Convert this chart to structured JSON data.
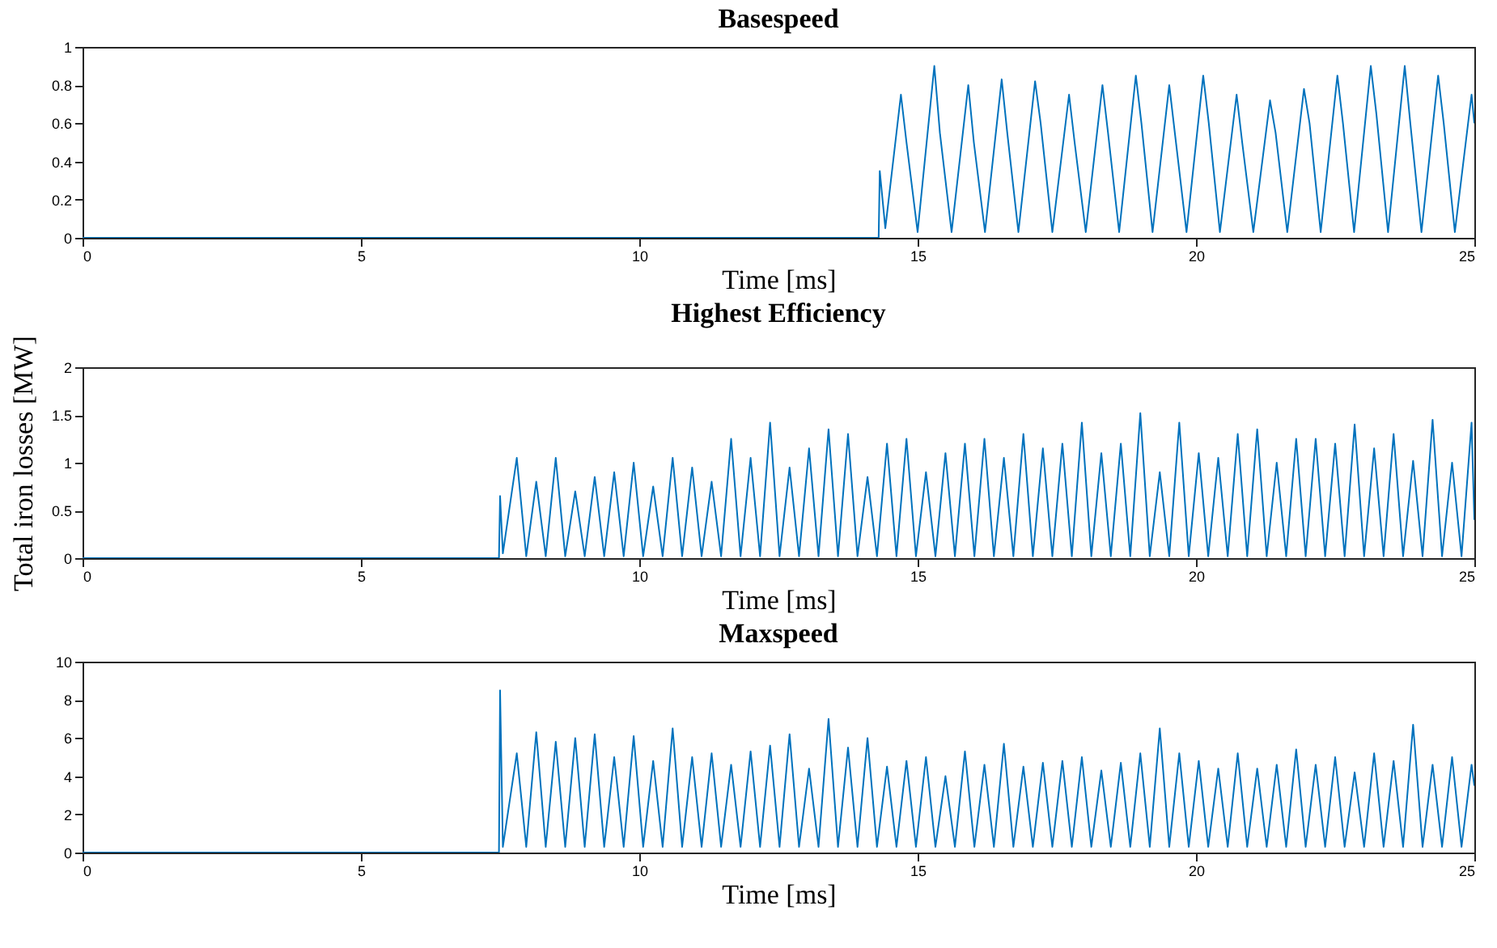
{
  "chart_data": [
    {
      "type": "line",
      "title": "Basespeed",
      "xlabel": "Time [ms]",
      "color": "#0072bd",
      "xlim": [
        0,
        25
      ],
      "xticks": [
        0,
        5,
        10,
        15,
        20,
        25
      ],
      "ylim": [
        0,
        1
      ],
      "yticks": [
        0,
        0.2,
        0.4,
        0.6,
        0.8,
        1
      ],
      "x": [
        0,
        14.3,
        14.32,
        14.42,
        14.7,
        14.8,
        15.0,
        15.3,
        15.4,
        15.61,
        15.91,
        16.01,
        16.21,
        16.51,
        16.61,
        16.81,
        17.11,
        17.21,
        17.42,
        17.72,
        17.82,
        18.02,
        18.32,
        18.42,
        18.62,
        18.92,
        19.02,
        19.22,
        19.52,
        19.62,
        19.83,
        20.13,
        20.23,
        20.43,
        20.73,
        20.83,
        21.03,
        21.33,
        21.43,
        21.64,
        21.94,
        22.04,
        22.24,
        22.54,
        22.64,
        22.84,
        23.14,
        23.24,
        23.45,
        23.75,
        23.85,
        24.05,
        24.35,
        24.45,
        24.65,
        24.95,
        25
      ],
      "values": [
        0,
        0,
        0.35,
        0.05,
        0.75,
        0.5,
        0.03,
        0.9,
        0.55,
        0.03,
        0.8,
        0.5,
        0.03,
        0.83,
        0.55,
        0.03,
        0.82,
        0.6,
        0.03,
        0.75,
        0.5,
        0.03,
        0.8,
        0.55,
        0.03,
        0.85,
        0.6,
        0.03,
        0.8,
        0.55,
        0.03,
        0.85,
        0.6,
        0.03,
        0.75,
        0.5,
        0.03,
        0.72,
        0.55,
        0.03,
        0.78,
        0.6,
        0.03,
        0.85,
        0.6,
        0.03,
        0.9,
        0.65,
        0.03,
        0.9,
        0.6,
        0.03,
        0.85,
        0.6,
        0.03,
        0.75,
        0.6
      ]
    },
    {
      "type": "line",
      "title": "Highest Efficiency",
      "xlabel": "Time [ms]",
      "ylabel": "Total iron losses [MW]",
      "color": "#0072bd",
      "xlim": [
        0,
        25
      ],
      "xticks": [
        0,
        5,
        10,
        15,
        20,
        25
      ],
      "ylim": [
        0,
        2
      ],
      "yticks": [
        0,
        0.5,
        1,
        1.5,
        2
      ],
      "x": [
        0,
        7.48,
        7.5,
        7.55,
        7.8,
        7.97,
        8.15,
        8.32,
        8.5,
        8.67,
        8.85,
        9.02,
        9.2,
        9.37,
        9.55,
        9.72,
        9.9,
        10.07,
        10.25,
        10.42,
        10.6,
        10.77,
        10.95,
        11.12,
        11.3,
        11.47,
        11.65,
        11.82,
        12.0,
        12.17,
        12.35,
        12.52,
        12.7,
        12.87,
        13.05,
        13.22,
        13.4,
        13.57,
        13.75,
        13.92,
        14.1,
        14.27,
        14.45,
        14.62,
        14.8,
        14.97,
        15.15,
        15.32,
        15.5,
        15.67,
        15.85,
        16.02,
        16.2,
        16.37,
        16.55,
        16.72,
        16.9,
        17.07,
        17.25,
        17.42,
        17.6,
        17.77,
        17.95,
        18.12,
        18.3,
        18.47,
        18.65,
        18.82,
        19.0,
        19.17,
        19.35,
        19.52,
        19.7,
        19.87,
        20.05,
        20.22,
        20.4,
        20.57,
        20.75,
        20.92,
        21.1,
        21.27,
        21.45,
        21.62,
        21.8,
        21.97,
        22.15,
        22.32,
        22.5,
        22.67,
        22.85,
        23.02,
        23.2,
        23.37,
        23.55,
        23.72,
        23.9,
        24.07,
        24.25,
        24.42,
        24.6,
        24.77,
        24.95,
        25
      ],
      "values": [
        0,
        0,
        0.65,
        0.05,
        1.05,
        0.02,
        0.8,
        0.02,
        1.05,
        0.02,
        0.7,
        0.02,
        0.85,
        0.02,
        0.9,
        0.02,
        1.0,
        0.02,
        0.75,
        0.02,
        1.05,
        0.02,
        0.95,
        0.02,
        0.8,
        0.02,
        1.25,
        0.02,
        1.05,
        0.02,
        1.42,
        0.02,
        0.95,
        0.02,
        1.15,
        0.02,
        1.35,
        0.02,
        1.3,
        0.02,
        0.85,
        0.02,
        1.2,
        0.02,
        1.25,
        0.02,
        0.9,
        0.02,
        1.1,
        0.02,
        1.2,
        0.02,
        1.25,
        0.02,
        1.05,
        0.02,
        1.3,
        0.02,
        1.15,
        0.02,
        1.2,
        0.02,
        1.42,
        0.02,
        1.1,
        0.02,
        1.2,
        0.02,
        1.52,
        0.02,
        0.9,
        0.02,
        1.42,
        0.02,
        1.1,
        0.02,
        1.05,
        0.02,
        1.3,
        0.02,
        1.35,
        0.02,
        1.0,
        0.02,
        1.25,
        0.02,
        1.25,
        0.02,
        1.2,
        0.02,
        1.4,
        0.02,
        1.15,
        0.02,
        1.3,
        0.02,
        1.02,
        0.02,
        1.45,
        0.02,
        1.0,
        0.02,
        1.42,
        0.4
      ]
    },
    {
      "type": "line",
      "title": "Maxspeed",
      "xlabel": "Time [ms]",
      "color": "#0072bd",
      "xlim": [
        0,
        25
      ],
      "xticks": [
        0,
        5,
        10,
        15,
        20,
        25
      ],
      "ylim": [
        0,
        10
      ],
      "yticks": [
        0,
        2,
        4,
        6,
        8,
        10
      ],
      "x": [
        0,
        7.48,
        7.5,
        7.55,
        7.8,
        7.97,
        8.15,
        8.32,
        8.5,
        8.67,
        8.85,
        9.02,
        9.2,
        9.37,
        9.55,
        9.72,
        9.9,
        10.07,
        10.25,
        10.42,
        10.6,
        10.77,
        10.95,
        11.12,
        11.3,
        11.47,
        11.65,
        11.82,
        12.0,
        12.17,
        12.35,
        12.52,
        12.7,
        12.87,
        13.05,
        13.22,
        13.4,
        13.57,
        13.75,
        13.92,
        14.1,
        14.27,
        14.45,
        14.62,
        14.8,
        14.97,
        15.15,
        15.32,
        15.5,
        15.67,
        15.85,
        16.02,
        16.2,
        16.37,
        16.55,
        16.72,
        16.9,
        17.07,
        17.25,
        17.42,
        17.6,
        17.77,
        17.95,
        18.12,
        18.3,
        18.47,
        18.65,
        18.82,
        19.0,
        19.17,
        19.35,
        19.52,
        19.7,
        19.87,
        20.05,
        20.22,
        20.4,
        20.57,
        20.75,
        20.92,
        21.1,
        21.27,
        21.45,
        21.62,
        21.8,
        21.97,
        22.15,
        22.32,
        22.5,
        22.67,
        22.85,
        23.02,
        23.2,
        23.37,
        23.55,
        23.72,
        23.9,
        24.07,
        24.25,
        24.42,
        24.6,
        24.77,
        24.95,
        25
      ],
      "values": [
        0,
        0,
        8.5,
        0.3,
        5.2,
        0.3,
        6.3,
        0.3,
        5.8,
        0.3,
        6.0,
        0.3,
        6.2,
        0.3,
        5.0,
        0.3,
        6.1,
        0.3,
        4.8,
        0.3,
        6.5,
        0.3,
        5.0,
        0.3,
        5.2,
        0.3,
        4.6,
        0.3,
        5.3,
        0.3,
        5.6,
        0.3,
        6.2,
        0.3,
        4.4,
        0.3,
        7.0,
        0.3,
        5.5,
        0.3,
        6.0,
        0.3,
        4.5,
        0.3,
        4.8,
        0.3,
        5.0,
        0.3,
        4.0,
        0.3,
        5.3,
        0.3,
        4.6,
        0.3,
        5.7,
        0.3,
        4.5,
        0.3,
        4.7,
        0.3,
        4.8,
        0.3,
        5.0,
        0.3,
        4.3,
        0.3,
        4.7,
        0.3,
        5.2,
        0.3,
        6.5,
        0.3,
        5.2,
        0.3,
        4.8,
        0.3,
        4.4,
        0.3,
        5.2,
        0.3,
        4.4,
        0.3,
        4.6,
        0.3,
        5.4,
        0.3,
        4.6,
        0.3,
        5.0,
        0.3,
        4.2,
        0.3,
        5.2,
        0.3,
        4.8,
        0.3,
        6.7,
        0.3,
        4.6,
        0.3,
        5.0,
        0.3,
        4.6,
        3.5
      ]
    }
  ]
}
